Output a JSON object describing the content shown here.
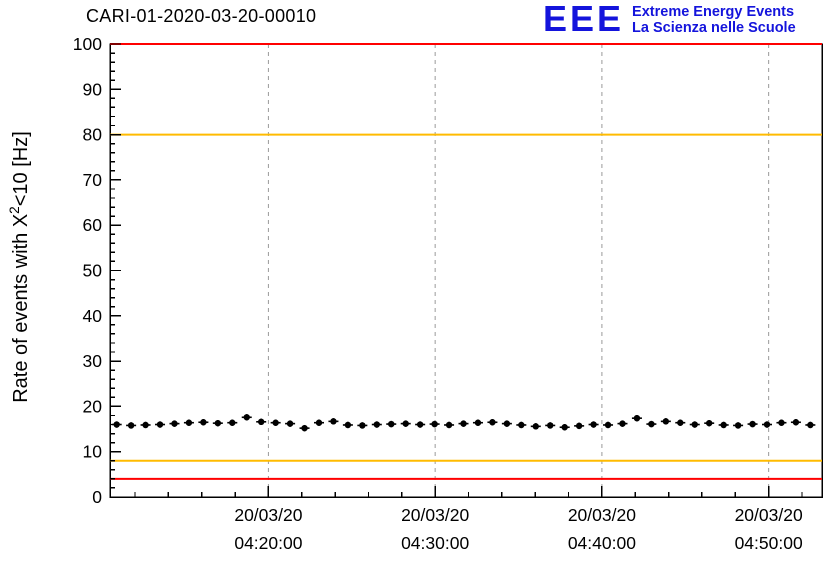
{
  "header": {
    "title": "CARI-01-2020-03-20-00010",
    "logo": {
      "acronym": "EEE",
      "line1": "Extreme Energy Events",
      "line2": "La Scienza nelle Scuole",
      "color": "#1414dc"
    }
  },
  "chart_data": {
    "type": "scatter",
    "title": "CARI-01-2020-03-20-00010",
    "ylabel": "Rate of events with X^2<10 [Hz]",
    "ylabel_parts": {
      "pre": "Rate of events with X",
      "sup": "2",
      "post": "<10 [Hz]"
    },
    "xlabel": "",
    "ylim": [
      0,
      100
    ],
    "y_ticks": [
      0,
      10,
      20,
      30,
      40,
      50,
      60,
      70,
      80,
      90,
      100
    ],
    "x_range_minutes": [
      10.5,
      53.2
    ],
    "x_ticks": [
      {
        "minute": 20,
        "date": "20/03/20",
        "time": "04:20:00"
      },
      {
        "minute": 30,
        "date": "20/03/20",
        "time": "04:30:00"
      },
      {
        "minute": 40,
        "date": "20/03/20",
        "time": "04:40:00"
      },
      {
        "minute": 50,
        "date": "20/03/20",
        "time": "04:50:00"
      }
    ],
    "grid": "vertical-dashed",
    "threshold_lines": [
      {
        "y": 100,
        "color": "#ff0000",
        "name": "red-max"
      },
      {
        "y": 80,
        "color": "#ffbb00",
        "name": "yellow-max"
      },
      {
        "y": 8,
        "color": "#ffbb00",
        "name": "yellow-min"
      },
      {
        "y": 4,
        "color": "#ff0000",
        "name": "red-min"
      }
    ],
    "points": {
      "color": "#000000",
      "x_start_minute": 10.9,
      "x_step_minute": 0.8667,
      "x_err_minutes": 0.3,
      "y_err_hz": 0.7,
      "y": [
        16.0,
        15.8,
        15.9,
        16.0,
        16.2,
        16.4,
        16.5,
        16.3,
        16.4,
        17.6,
        16.6,
        16.4,
        16.2,
        15.2,
        16.4,
        16.7,
        15.9,
        15.8,
        16.0,
        16.1,
        16.2,
        16.0,
        16.1,
        15.9,
        16.2,
        16.4,
        16.5,
        16.2,
        15.9,
        15.6,
        15.8,
        15.4,
        15.7,
        16.0,
        15.9,
        16.2,
        17.4,
        16.1,
        16.7,
        16.4,
        16.0,
        16.3,
        15.9,
        15.8,
        16.1,
        16.0,
        16.4,
        16.5,
        15.9
      ]
    }
  }
}
